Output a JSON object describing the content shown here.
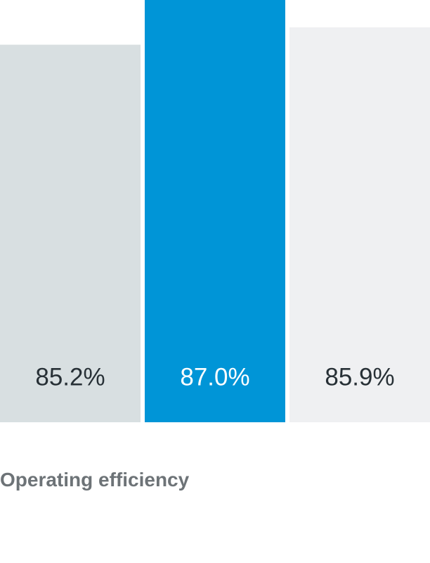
{
  "chart_data": {
    "type": "bar",
    "categories": [
      "",
      "",
      ""
    ],
    "values": [
      85.2,
      87.0,
      85.9
    ],
    "data_labels": [
      "85.2%",
      "87.0%",
      "85.9%"
    ],
    "title": "",
    "xlabel": "Operating efficiency",
    "ylabel": "",
    "ylim": [
      0,
      87.0
    ],
    "grid": false,
    "legend": "none",
    "bar_colors": [
      "#d8dfe1",
      "#0095d7",
      "#eff0f2"
    ],
    "label_colors": [
      "#273036",
      "#ffffff",
      "#273036"
    ]
  }
}
